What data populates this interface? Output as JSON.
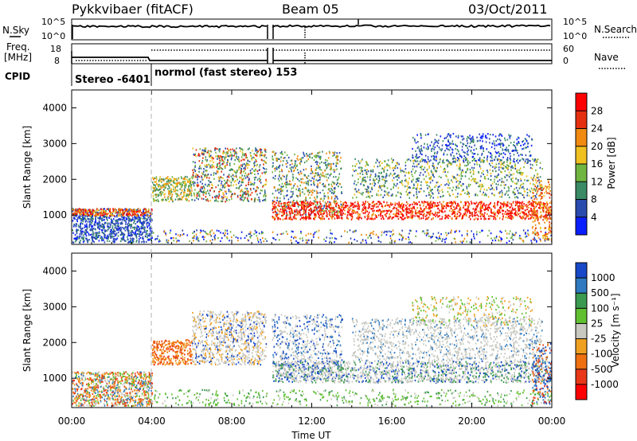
{
  "header": {
    "station": "Pykkvibaer (fitACF)",
    "beam": "Beam 05",
    "date": "03/Oct/2011"
  },
  "nsky_panel": {
    "left_label": "N.Sky",
    "left_ticks": [
      "10^5",
      "10^0"
    ],
    "right_label": "N.Search",
    "right_ticks": [
      "10^5",
      "10^0"
    ]
  },
  "freq_panel": {
    "left_label_1": "Freq.",
    "left_label_2": "[MHz]",
    "left_ticks": [
      "18",
      "8"
    ],
    "right_label": "Nave",
    "right_ticks": [
      "60",
      "0"
    ]
  },
  "cpid_panel": {
    "label": "CPID",
    "segments": [
      {
        "text": "Stereo -6401",
        "start_hour": 0,
        "end_hour": 4
      },
      {
        "text": "normol (fast stereo) 153",
        "start_hour": 4,
        "end_hour": 24
      }
    ]
  },
  "chart_data": [
    {
      "type": "heatmap",
      "name": "power",
      "ylabel": "Slant Range [km]",
      "xlabel": "",
      "ylim": [
        180,
        4500
      ],
      "yticks": [
        "1000",
        "2000",
        "3000",
        "4000"
      ],
      "xlim_hours": [
        0,
        24
      ],
      "colorbar": {
        "label": "Power [dB]",
        "ticks": [
          "4",
          "8",
          "12",
          "16",
          "20",
          "24",
          "28"
        ],
        "colors": [
          "#0a1fff",
          "#2a4ab0",
          "#3a8a66",
          "#70b540",
          "#f0c020",
          "#f08a10",
          "#e53010",
          "#ff0000"
        ]
      }
    },
    {
      "type": "heatmap",
      "name": "velocity",
      "ylabel": "Slant Range [km]",
      "xlabel": "Time UT",
      "ylim": [
        180,
        4500
      ],
      "yticks": [
        "1000",
        "2000",
        "3000",
        "4000"
      ],
      "xticks": [
        "00:00",
        "04:00",
        "08:00",
        "12:00",
        "16:00",
        "20:00",
        "00:00"
      ],
      "xlim_hours": [
        0,
        24
      ],
      "colorbar": {
        "label": "Velocity [m s⁻¹]",
        "ticks": [
          "1000",
          "500",
          "100",
          "25",
          "-25",
          "-100",
          "-500",
          "-1000"
        ],
        "colors": [
          "#1848c8",
          "#2f7ac0",
          "#3a9a50",
          "#60c030",
          "#c8c8c0",
          "#f0a020",
          "#f07010",
          "#e83818",
          "#ff0000"
        ]
      }
    }
  ]
}
